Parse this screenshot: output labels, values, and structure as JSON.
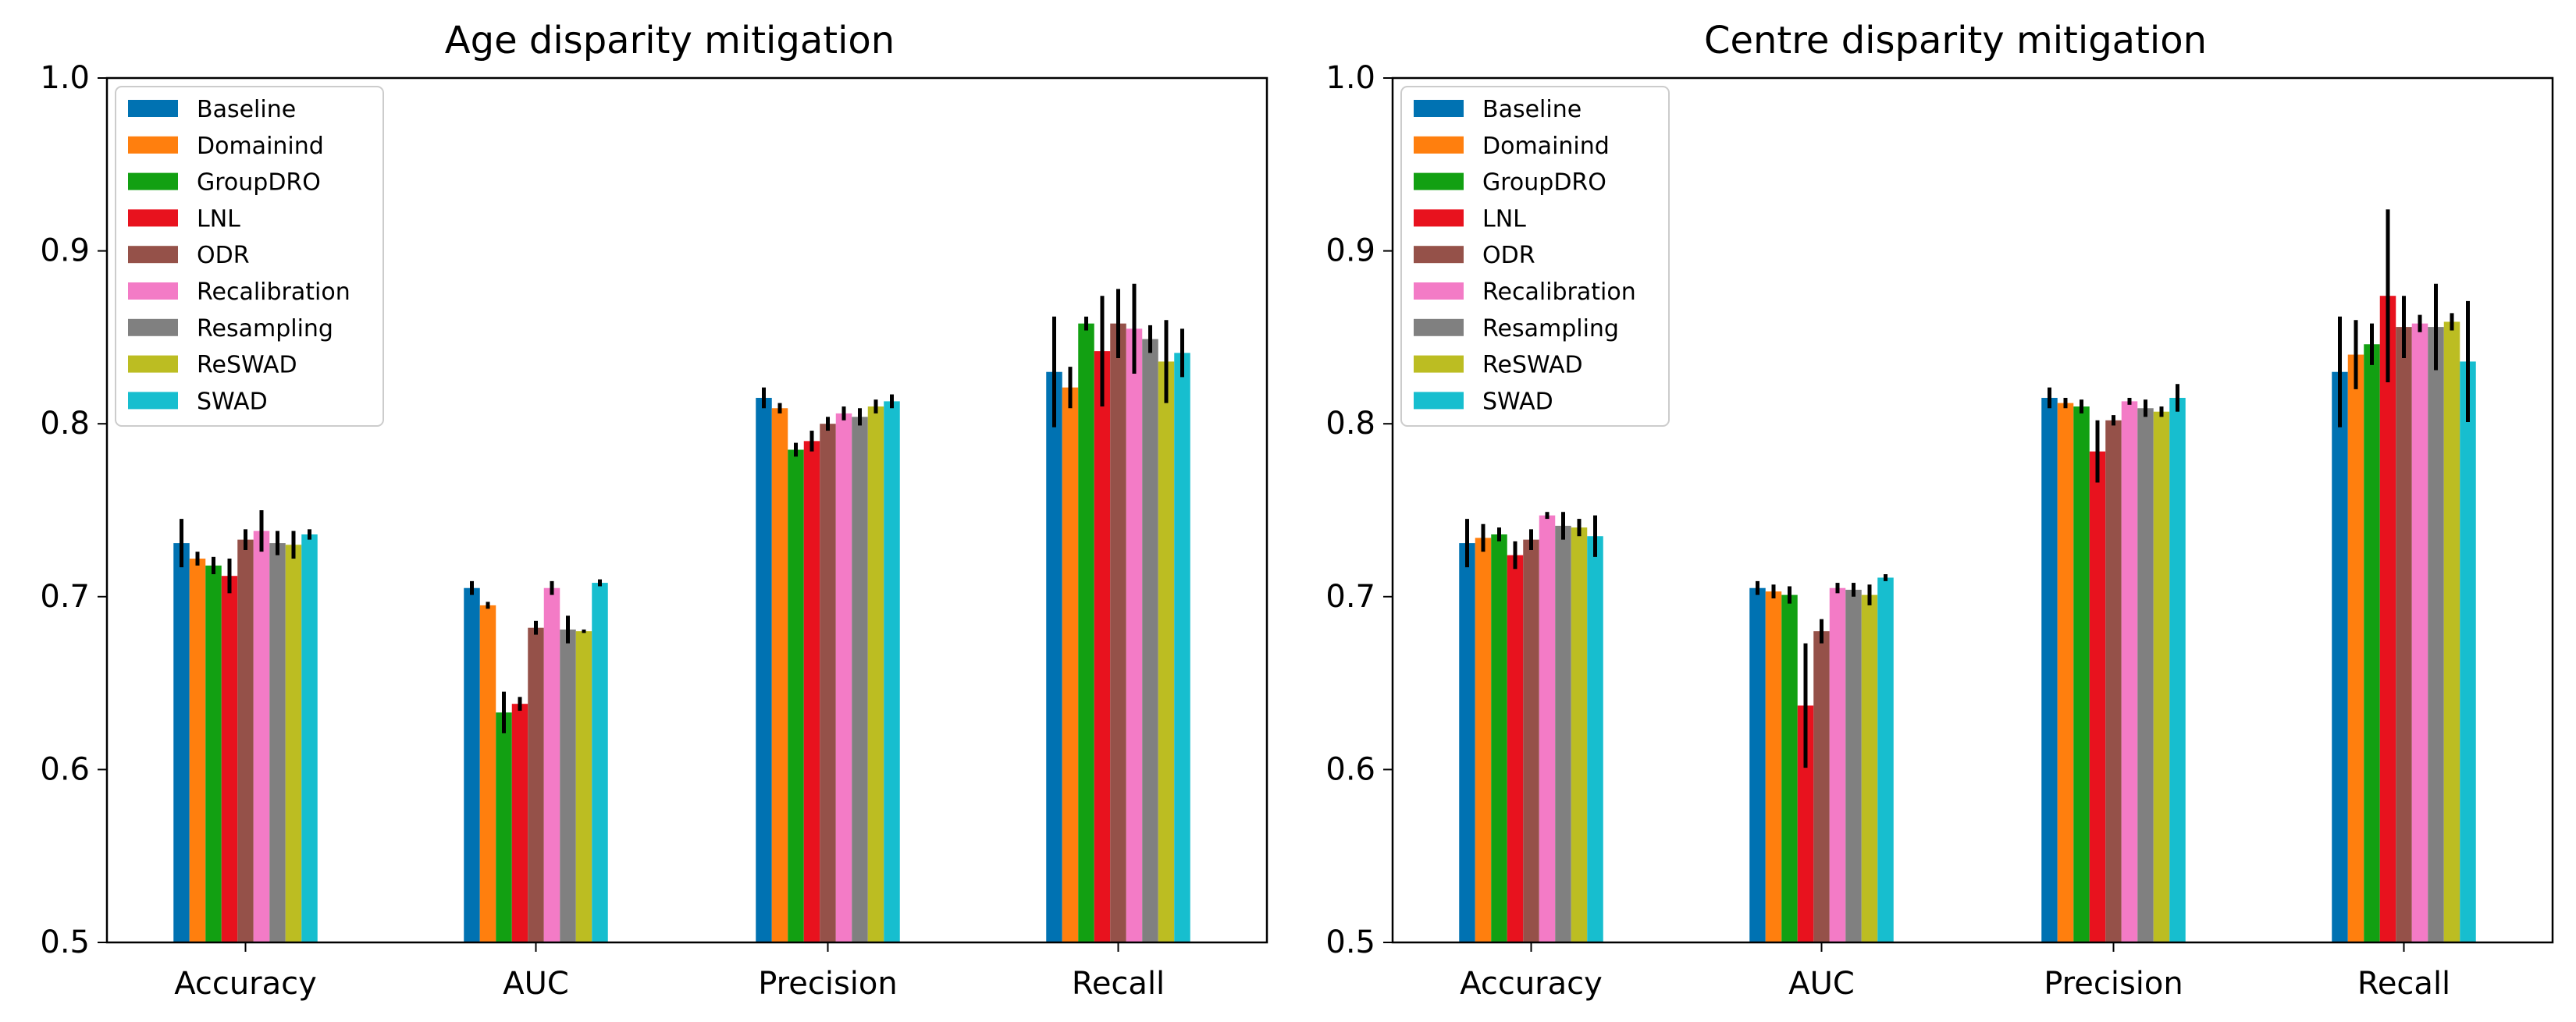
{
  "chart_data": [
    {
      "type": "bar",
      "title": "Age disparity mitigation",
      "xlabel": "",
      "ylabel": "",
      "ylim": [
        0.5,
        1.0
      ],
      "yticks": [
        "0.5",
        "0.6",
        "0.7",
        "0.8",
        "0.9",
        "1.0"
      ],
      "grid": false,
      "legend_position": "top-left",
      "categories": [
        "Accuracy",
        "AUC",
        "Precision",
        "Recall"
      ],
      "series": [
        {
          "name": "Baseline",
          "color": "#0072b2",
          "values": [
            0.731,
            0.705,
            0.815,
            0.83
          ],
          "errors": [
            0.014,
            0.004,
            0.006,
            0.032
          ]
        },
        {
          "name": "Domainind",
          "color": "#ff7f0e",
          "values": [
            0.722,
            0.695,
            0.809,
            0.821
          ],
          "errors": [
            0.004,
            0.002,
            0.003,
            0.012
          ]
        },
        {
          "name": "GroupDRO",
          "color": "#12a012",
          "values": [
            0.718,
            0.633,
            0.785,
            0.858
          ],
          "errors": [
            0.005,
            0.012,
            0.004,
            0.004
          ]
        },
        {
          "name": "LNL",
          "color": "#e8121e",
          "values": [
            0.712,
            0.638,
            0.79,
            0.842
          ],
          "errors": [
            0.01,
            0.004,
            0.006,
            0.032
          ]
        },
        {
          "name": "ODR",
          "color": "#955149",
          "values": [
            0.733,
            0.682,
            0.8,
            0.858
          ],
          "errors": [
            0.006,
            0.004,
            0.004,
            0.02
          ]
        },
        {
          "name": "Recalibration",
          "color": "#f37bc6",
          "values": [
            0.738,
            0.705,
            0.806,
            0.855
          ],
          "errors": [
            0.012,
            0.004,
            0.004,
            0.026
          ]
        },
        {
          "name": "Resampling",
          "color": "#808080",
          "values": [
            0.731,
            0.681,
            0.804,
            0.849
          ],
          "errors": [
            0.007,
            0.008,
            0.005,
            0.008
          ]
        },
        {
          "name": "ReSWAD",
          "color": "#bcbd22",
          "values": [
            0.73,
            0.68,
            0.81,
            0.836
          ],
          "errors": [
            0.008,
            0.001,
            0.004,
            0.024
          ]
        },
        {
          "name": "SWAD",
          "color": "#17becf",
          "values": [
            0.736,
            0.708,
            0.813,
            0.841
          ],
          "errors": [
            0.003,
            0.002,
            0.004,
            0.014
          ]
        }
      ]
    },
    {
      "type": "bar",
      "title": "Centre disparity mitigation",
      "xlabel": "",
      "ylabel": "",
      "ylim": [
        0.5,
        1.0
      ],
      "yticks": [
        "0.5",
        "0.6",
        "0.7",
        "0.8",
        "0.9",
        "1.0"
      ],
      "grid": false,
      "legend_position": "top-left",
      "categories": [
        "Accuracy",
        "AUC",
        "Precision",
        "Recall"
      ],
      "series": [
        {
          "name": "Baseline",
          "color": "#0072b2",
          "values": [
            0.731,
            0.705,
            0.815,
            0.83
          ],
          "errors": [
            0.014,
            0.004,
            0.006,
            0.032
          ]
        },
        {
          "name": "Domainind",
          "color": "#ff7f0e",
          "values": [
            0.734,
            0.703,
            0.812,
            0.84
          ],
          "errors": [
            0.008,
            0.004,
            0.003,
            0.02
          ]
        },
        {
          "name": "GroupDRO",
          "color": "#12a012",
          "values": [
            0.736,
            0.701,
            0.81,
            0.846
          ],
          "errors": [
            0.004,
            0.005,
            0.004,
            0.012
          ]
        },
        {
          "name": "LNL",
          "color": "#e8121e",
          "values": [
            0.724,
            0.637,
            0.784,
            0.874
          ],
          "errors": [
            0.008,
            0.036,
            0.018,
            0.05
          ]
        },
        {
          "name": "ODR",
          "color": "#955149",
          "values": [
            0.733,
            0.68,
            0.802,
            0.856
          ],
          "errors": [
            0.006,
            0.007,
            0.003,
            0.018
          ]
        },
        {
          "name": "Recalibration",
          "color": "#f37bc6",
          "values": [
            0.747,
            0.705,
            0.813,
            0.858
          ],
          "errors": [
            0.002,
            0.003,
            0.002,
            0.005
          ]
        },
        {
          "name": "Resampling",
          "color": "#808080",
          "values": [
            0.741,
            0.704,
            0.809,
            0.856
          ],
          "errors": [
            0.008,
            0.004,
            0.005,
            0.025
          ]
        },
        {
          "name": "ReSWAD",
          "color": "#bcbd22",
          "values": [
            0.74,
            0.701,
            0.807,
            0.859
          ],
          "errors": [
            0.005,
            0.006,
            0.003,
            0.005
          ]
        },
        {
          "name": "SWAD",
          "color": "#17becf",
          "values": [
            0.735,
            0.711,
            0.815,
            0.836
          ],
          "errors": [
            0.012,
            0.002,
            0.008,
            0.035
          ]
        }
      ]
    }
  ]
}
